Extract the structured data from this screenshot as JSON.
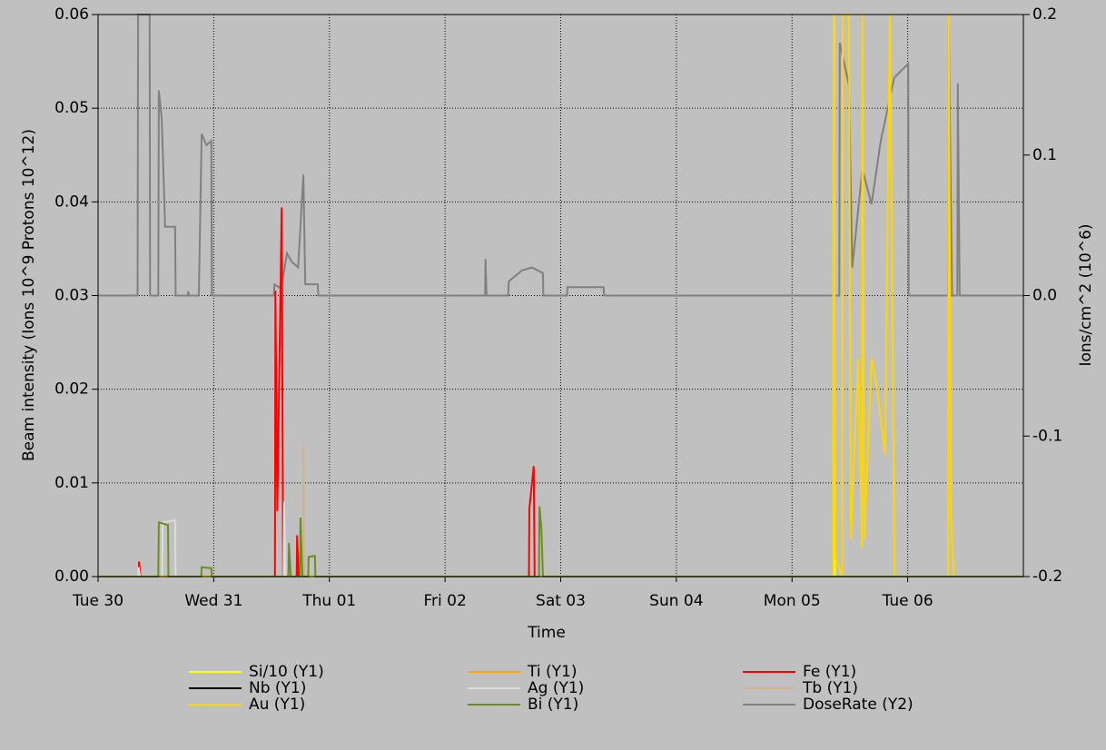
{
  "chart_data": {
    "type": "line",
    "xlabel": "Time",
    "ylabel": "Beam intensity (Ions 10^9 Protons 10^12)",
    "y2label": "Ions/cm^2 (10^6)",
    "xlim": [
      0,
      192
    ],
    "xticks": [
      {
        "value": 0,
        "label": "Tue 30"
      },
      {
        "value": 24,
        "label": "Wed 31"
      },
      {
        "value": 48,
        "label": "Thu 01"
      },
      {
        "value": 72,
        "label": "Fri 02"
      },
      {
        "value": 96,
        "label": "Sat 03"
      },
      {
        "value": 120,
        "label": "Sun 04"
      },
      {
        "value": 144,
        "label": "Mon 05"
      },
      {
        "value": 168,
        "label": "Tue 06"
      }
    ],
    "ylim": [
      0,
      0.06
    ],
    "yticks": [
      {
        "value": 0,
        "label": "0.00"
      },
      0.01,
      0.02,
      0.03,
      0.04,
      0.05,
      0.06
    ],
    "y2lim": [
      -0.2,
      0.2
    ],
    "y2ticks": [
      -0.2,
      -0.1,
      {
        "value": 0,
        "label": "0.0"
      },
      0.1,
      0.2
    ],
    "grid": true,
    "legend": "bottom",
    "series": [
      {
        "name": "Si/10 (Y1)",
        "color": "#ffff00",
        "x": [
          0,
          152.6,
          152.7,
          152.9,
          192
        ],
        "values": [
          0,
          0,
          0.06,
          0,
          0
        ]
      },
      {
        "name": "Ti (Y1)",
        "color": "#ffa500",
        "x": [
          0,
          192
        ],
        "values": [
          0,
          0
        ]
      },
      {
        "name": "Fe (Y1)",
        "color": "#ff0000",
        "x": [
          0,
          8.4,
          8.5,
          8.8,
          36.7,
          36.8,
          37.2,
          38.1,
          38.4,
          41.2,
          41.3,
          41.6,
          89.4,
          89.5,
          90.4,
          90.6,
          192
        ],
        "values": [
          0,
          0,
          0.0016,
          0,
          0,
          0.0305,
          0.007,
          0.0394,
          0,
          0,
          0.0044,
          0,
          0,
          0.0073,
          0.0118,
          0,
          0
        ]
      },
      {
        "name": "Nb (Y1)",
        "color": "#000000",
        "x": [
          0,
          192
        ],
        "values": [
          0,
          0
        ]
      },
      {
        "name": "Ag (Y1)",
        "color": "#dcdcdc",
        "x": [
          0,
          8.3,
          8.4,
          8.7,
          13.3,
          13.4,
          16.0,
          16.1,
          38.5,
          38.6,
          38.9,
          192
        ],
        "values": [
          0,
          0,
          0.001,
          0,
          0,
          0.0058,
          0.006,
          0,
          0,
          0.008,
          0,
          0
        ]
      },
      {
        "name": "Tb (Y1)",
        "color": "#d2b48c",
        "x": [
          0,
          42.5,
          42.6,
          42.8,
          192
        ],
        "values": [
          0,
          0,
          0.014,
          0,
          0
        ]
      },
      {
        "name": "Au (Y1)",
        "color": "#ffd700",
        "x": [
          0,
          152.5,
          152.6,
          153,
          154.4,
          154.5,
          155.8,
          156.2,
          157.7,
          158.5,
          158.6,
          159,
          160.5,
          161.4,
          163.3,
          164.3,
          165.2,
          165.3,
          176.4,
          176.5,
          177,
          177.5,
          177.6,
          192
        ],
        "values": [
          0,
          0,
          0.06,
          0.002,
          0,
          0.06,
          0.06,
          0.004,
          0.0233,
          0.003,
          0.06,
          0.004,
          0.0233,
          0.0208,
          0.013,
          0.06,
          0.0039,
          0,
          0,
          0.06,
          0.0063,
          0.0007,
          0,
          0
        ]
      },
      {
        "name": "Bi (Y1)",
        "color": "#6b8e23",
        "x": [
          0,
          12.5,
          12.6,
          14.5,
          14.6,
          21.4,
          21.5,
          23.5,
          23.6,
          39.5,
          39.6,
          40,
          41.9,
          42.0,
          42.4,
          43.6,
          43.7,
          45.0,
          45.1,
          91.5,
          91.6,
          92.0,
          92.3,
          192
        ],
        "values": [
          0,
          0,
          0.0058,
          0.0055,
          0,
          0,
          0.001,
          0.0009,
          0,
          0,
          0.0036,
          0,
          0,
          0.0063,
          0,
          0,
          0.0021,
          0.0022,
          0,
          0,
          0.0075,
          0.005,
          0,
          0
        ]
      },
      {
        "name": "DoseRate (Y2)",
        "color": "#808080",
        "axis": "y2",
        "x": [
          0,
          8.2,
          8.3,
          10.7,
          10.8,
          12.5,
          12.6,
          13.2,
          13.6,
          13.9,
          16.0,
          16.1,
          18.6,
          18.7,
          18.9,
          20.9,
          21.0,
          21.5,
          22.5,
          23.5,
          23.6,
          36.5,
          36.6,
          38.0,
          39.2,
          40.2,
          41.5,
          42.6,
          43.0,
          45.6,
          45.7,
          80.3,
          80.4,
          80.6,
          85.1,
          85.2,
          88,
          90,
          92.3,
          92.4,
          97.3,
          97.4,
          104.9,
          105,
          153.8,
          153.9,
          155.8,
          156.5,
          158.6,
          160.5,
          162.4,
          165.2,
          168.1,
          168.2,
          176.4,
          176.5,
          177.2,
          178.3,
          178.4,
          178.8,
          192
        ],
        "values": [
          0,
          0,
          0.2,
          0.2,
          0,
          0,
          0.146,
          0.126,
          0.084,
          0.049,
          0.049,
          0,
          0,
          0.003,
          0,
          0,
          0.02,
          0.115,
          0.107,
          0.11,
          0,
          0,
          0.008,
          0.005,
          0.03,
          0.024,
          0.02,
          0.086,
          0.008,
          0.008,
          0,
          0,
          0.026,
          0,
          0,
          0.01,
          0.018,
          0.02,
          0.016,
          0,
          0,
          0.006,
          0.006,
          0,
          0,
          0.18,
          0.15,
          0.02,
          0.09,
          0.065,
          0.11,
          0.155,
          0.165,
          0,
          0,
          0.194,
          0,
          0,
          0.151,
          0,
          0
        ]
      }
    ]
  }
}
